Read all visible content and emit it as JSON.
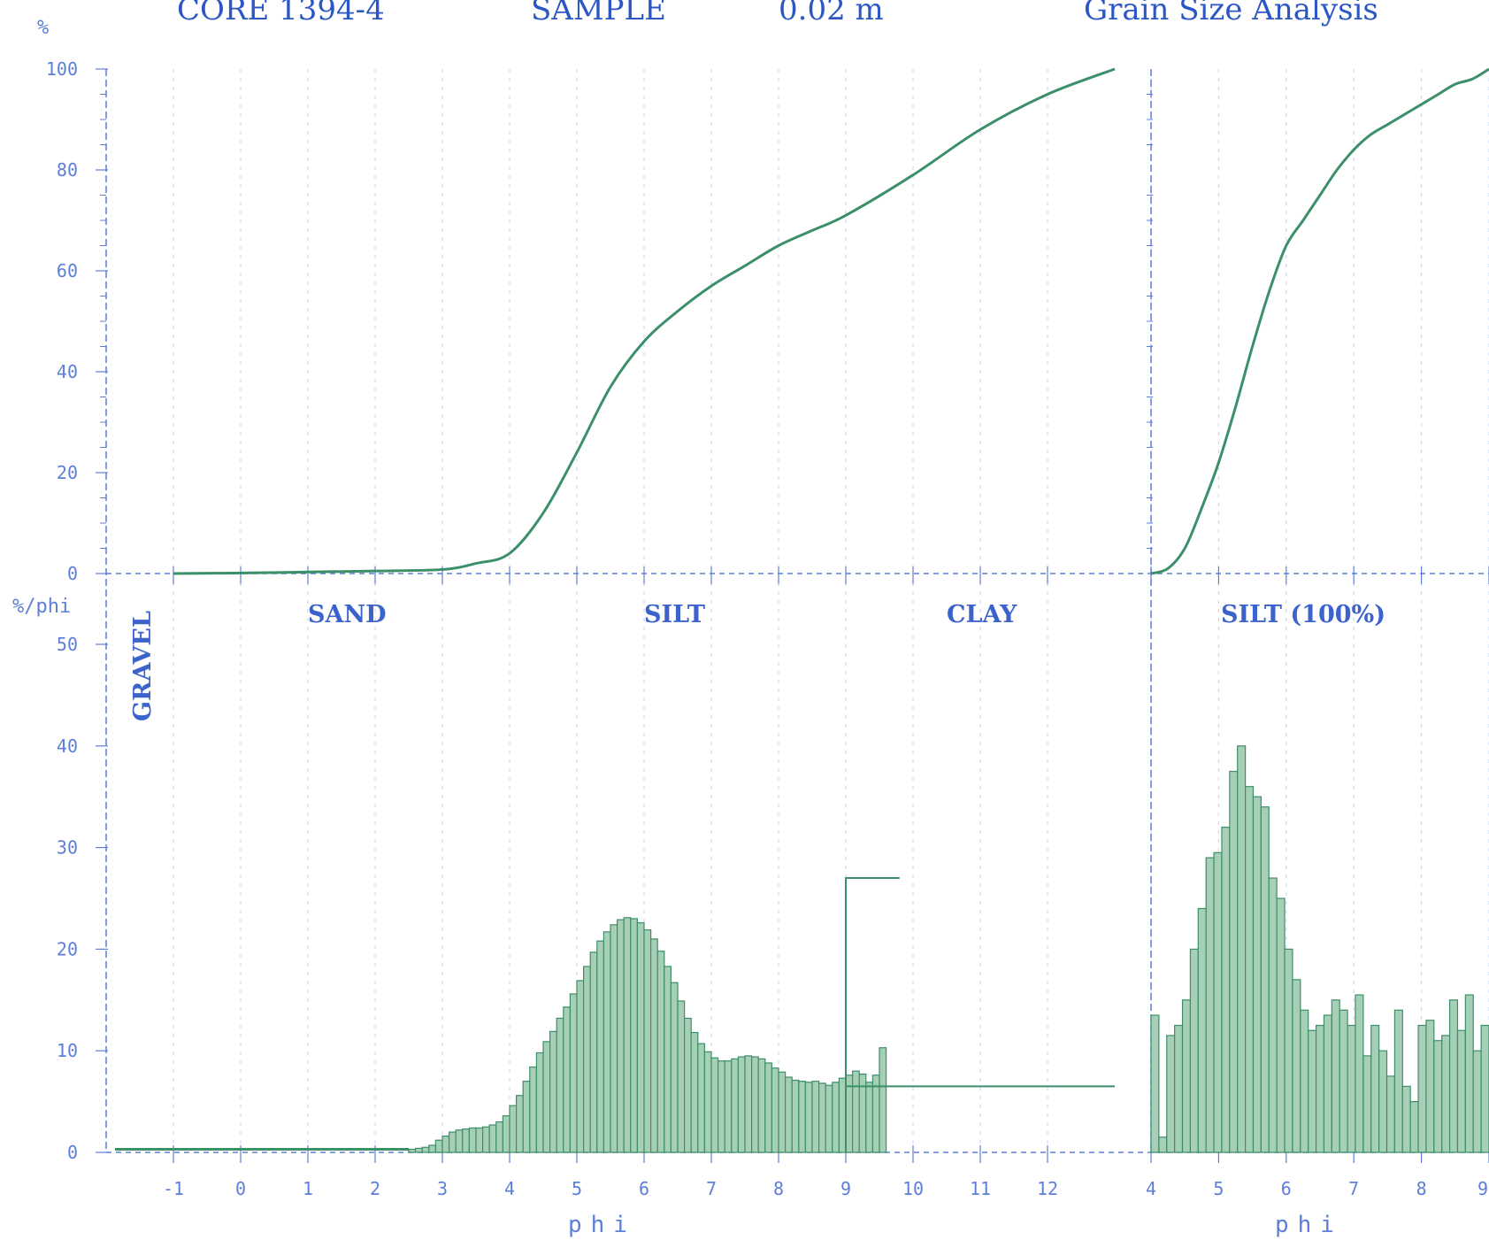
{
  "header": {
    "core": "CORE 1394-4",
    "sample": "SAMPLE",
    "depth": "0.02 m",
    "title": "Grain Size Analysis"
  },
  "colors": {
    "axis": "#5d7fd8",
    "grid": "#c7d1ec",
    "curve": "#3b8f69",
    "bar_fill": "#a6cfb6",
    "bar_stroke": "#3b8f69",
    "text": "#2b56c4"
  },
  "labels": {
    "cum_unit": "%",
    "freq_unit": "%/phi",
    "xlabel": "phi",
    "gravel": "GRAVEL",
    "sand": "SAND",
    "silt": "SILT",
    "clay": "CLAY",
    "silt_100": "SILT (100%)"
  },
  "chart_data": [
    {
      "type": "line",
      "title": "",
      "xlabel": "",
      "ylabel": "%",
      "xlim": [
        -1,
        13
      ],
      "ylim": [
        0,
        100
      ],
      "yticks": [
        0,
        20,
        40,
        60,
        80,
        100
      ],
      "grid": true,
      "x": [
        -1,
        0,
        1,
        2,
        3,
        3.5,
        4,
        4.5,
        5,
        5.5,
        6,
        6.5,
        7,
        7.5,
        8,
        8.5,
        9,
        10,
        11,
        12,
        13
      ],
      "y": [
        0,
        0.1,
        0.3,
        0.5,
        0.8,
        2,
        4,
        12,
        24,
        37,
        46,
        52,
        57,
        61,
        65,
        68,
        71,
        79,
        88,
        95,
        100
      ]
    },
    {
      "type": "line",
      "title": "",
      "xlabel": "phi",
      "ylabel": "",
      "xlim": [
        4,
        9
      ],
      "ylim": [
        0,
        100
      ],
      "xticks": [
        4,
        5,
        6,
        7,
        8,
        9
      ],
      "grid": true,
      "x": [
        4,
        4.25,
        4.5,
        4.75,
        5,
        5.25,
        5.5,
        5.75,
        6,
        6.25,
        6.5,
        6.75,
        7,
        7.25,
        7.5,
        7.75,
        8,
        8.25,
        8.5,
        8.75,
        9
      ],
      "y": [
        0,
        1,
        5,
        13,
        22,
        33,
        45,
        56,
        65,
        70,
        75,
        80,
        84,
        87,
        89,
        91,
        93,
        95,
        97,
        98,
        100
      ]
    },
    {
      "type": "bar",
      "title": "",
      "xlabel": "phi",
      "ylabel": "%/phi",
      "xlim": [
        -1,
        13
      ],
      "ylim": [
        0,
        50
      ],
      "xticks": [
        -1,
        0,
        1,
        2,
        3,
        4,
        5,
        6,
        7,
        8,
        9,
        10,
        11,
        12
      ],
      "yticks": [
        0,
        10,
        20,
        30,
        40,
        50
      ],
      "bin_start": 2.5,
      "bin_width": 0.1,
      "values": [
        0.3,
        0.4,
        0.5,
        0.7,
        1.2,
        1.6,
        2.0,
        2.2,
        2.3,
        2.4,
        2.4,
        2.5,
        2.7,
        3.0,
        3.6,
        4.6,
        5.6,
        7.0,
        8.4,
        9.8,
        10.9,
        11.9,
        13.2,
        14.3,
        15.6,
        16.9,
        18.3,
        19.7,
        20.8,
        21.7,
        22.4,
        22.9,
        23.1,
        23.0,
        22.6,
        21.9,
        21.0,
        19.8,
        18.3,
        16.7,
        14.9,
        13.2,
        11.8,
        10.7,
        9.9,
        9.3,
        9.0,
        9.0,
        9.2,
        9.4,
        9.5,
        9.4,
        9.2,
        8.8,
        8.3,
        7.9,
        7.4,
        7.1,
        7.0,
        6.9,
        7.0,
        6.8,
        6.6,
        6.9,
        7.3,
        7.6,
        8.0,
        7.7,
        6.9,
        7.6,
        10.3
      ],
      "base_level": 0.3,
      "clay_block": {
        "from": 9,
        "to": 13,
        "value": 6.5
      },
      "annotation_bar": {
        "from": 9,
        "to": 9.8,
        "value": 27
      }
    },
    {
      "type": "bar",
      "title": "",
      "xlabel": "phi",
      "ylabel": "",
      "xlim": [
        4,
        9
      ],
      "ylim": [
        0,
        50
      ],
      "xticks": [
        4,
        5,
        6,
        7,
        8,
        9
      ],
      "bin_start": 4.0,
      "bin_width": 0.1,
      "values": [
        13.5,
        1.5,
        11.5,
        12.5,
        15.0,
        20.0,
        24.0,
        29.0,
        29.5,
        32.0,
        37.5,
        40.0,
        36.0,
        35.0,
        34.0,
        27.0,
        25.0,
        20.0,
        17.0,
        14.0,
        12.0,
        12.5,
        13.5,
        15.0,
        14.0,
        12.5,
        15.5,
        9.5,
        12.5,
        10.0,
        7.5,
        14.0,
        6.5,
        5.0,
        12.5,
        13.0,
        11.0,
        11.5,
        15.0,
        12.0
      ],
      "extra_values": [
        15.5,
        10.0,
        12.5
      ]
    }
  ]
}
